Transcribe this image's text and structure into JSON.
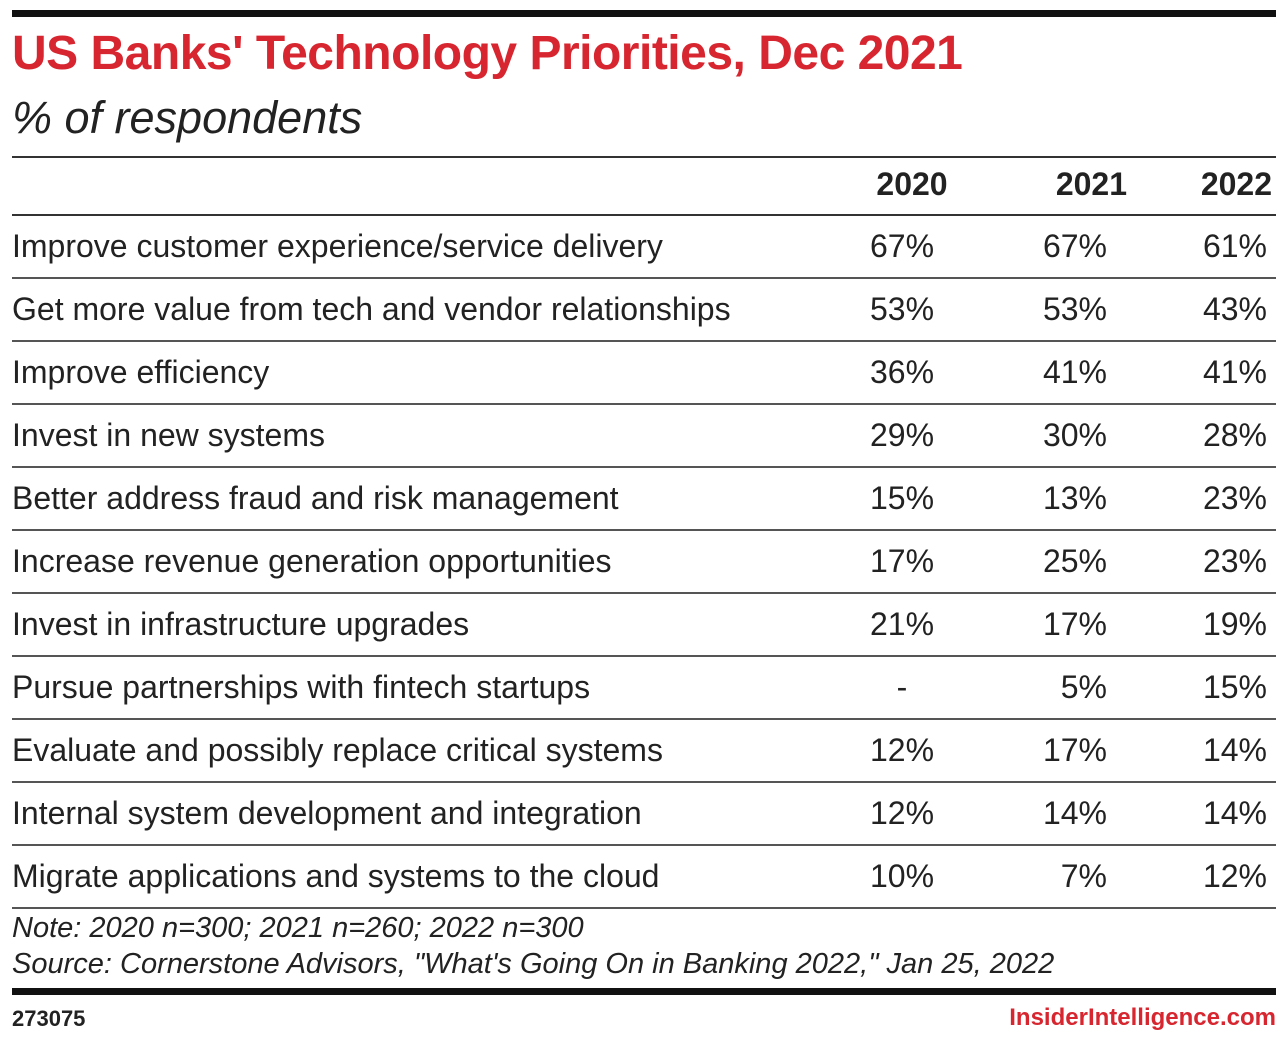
{
  "chart_data": {
    "type": "table",
    "title": "US Banks' Technology Priorities, Dec 2021",
    "subtitle": "% of respondents",
    "columns": [
      "2020",
      "2021",
      "2022"
    ],
    "rows": [
      {
        "label": "Improve customer experience/service delivery",
        "values": [
          "67%",
          "67%",
          "61%"
        ]
      },
      {
        "label": "Get more value from tech and vendor relationships",
        "values": [
          "53%",
          "53%",
          "43%"
        ]
      },
      {
        "label": "Improve efficiency",
        "values": [
          "36%",
          "41%",
          "41%"
        ]
      },
      {
        "label": "Invest in new systems",
        "values": [
          "29%",
          "30%",
          "28%"
        ]
      },
      {
        "label": "Better address fraud and risk management",
        "values": [
          "15%",
          "13%",
          "23%"
        ]
      },
      {
        "label": "Increase revenue generation opportunities",
        "values": [
          "17%",
          "25%",
          "23%"
        ]
      },
      {
        "label": "Invest in infrastructure upgrades",
        "values": [
          "21%",
          "17%",
          "19%"
        ]
      },
      {
        "label": "Pursue partnerships with fintech startups",
        "values": [
          "-",
          "5%",
          "15%"
        ]
      },
      {
        "label": "Evaluate and possibly replace critical systems",
        "values": [
          "12%",
          "17%",
          "14%"
        ]
      },
      {
        "label": "Internal system development and integration",
        "values": [
          "12%",
          "14%",
          "14%"
        ]
      },
      {
        "label": "Migrate applications and systems to the cloud",
        "values": [
          "10%",
          "7%",
          "12%"
        ]
      }
    ],
    "note": "Note: 2020 n=300; 2021 n=260; 2022 n=300",
    "source": "Source: Cornerstone Advisors, \"What's Going On in Banking 2022,\" Jan 25, 2022"
  },
  "footer": {
    "chart_id": "273075",
    "brand": "InsiderIntelligence.com"
  },
  "colors": {
    "accent": "#d7262f",
    "text": "#222222"
  }
}
